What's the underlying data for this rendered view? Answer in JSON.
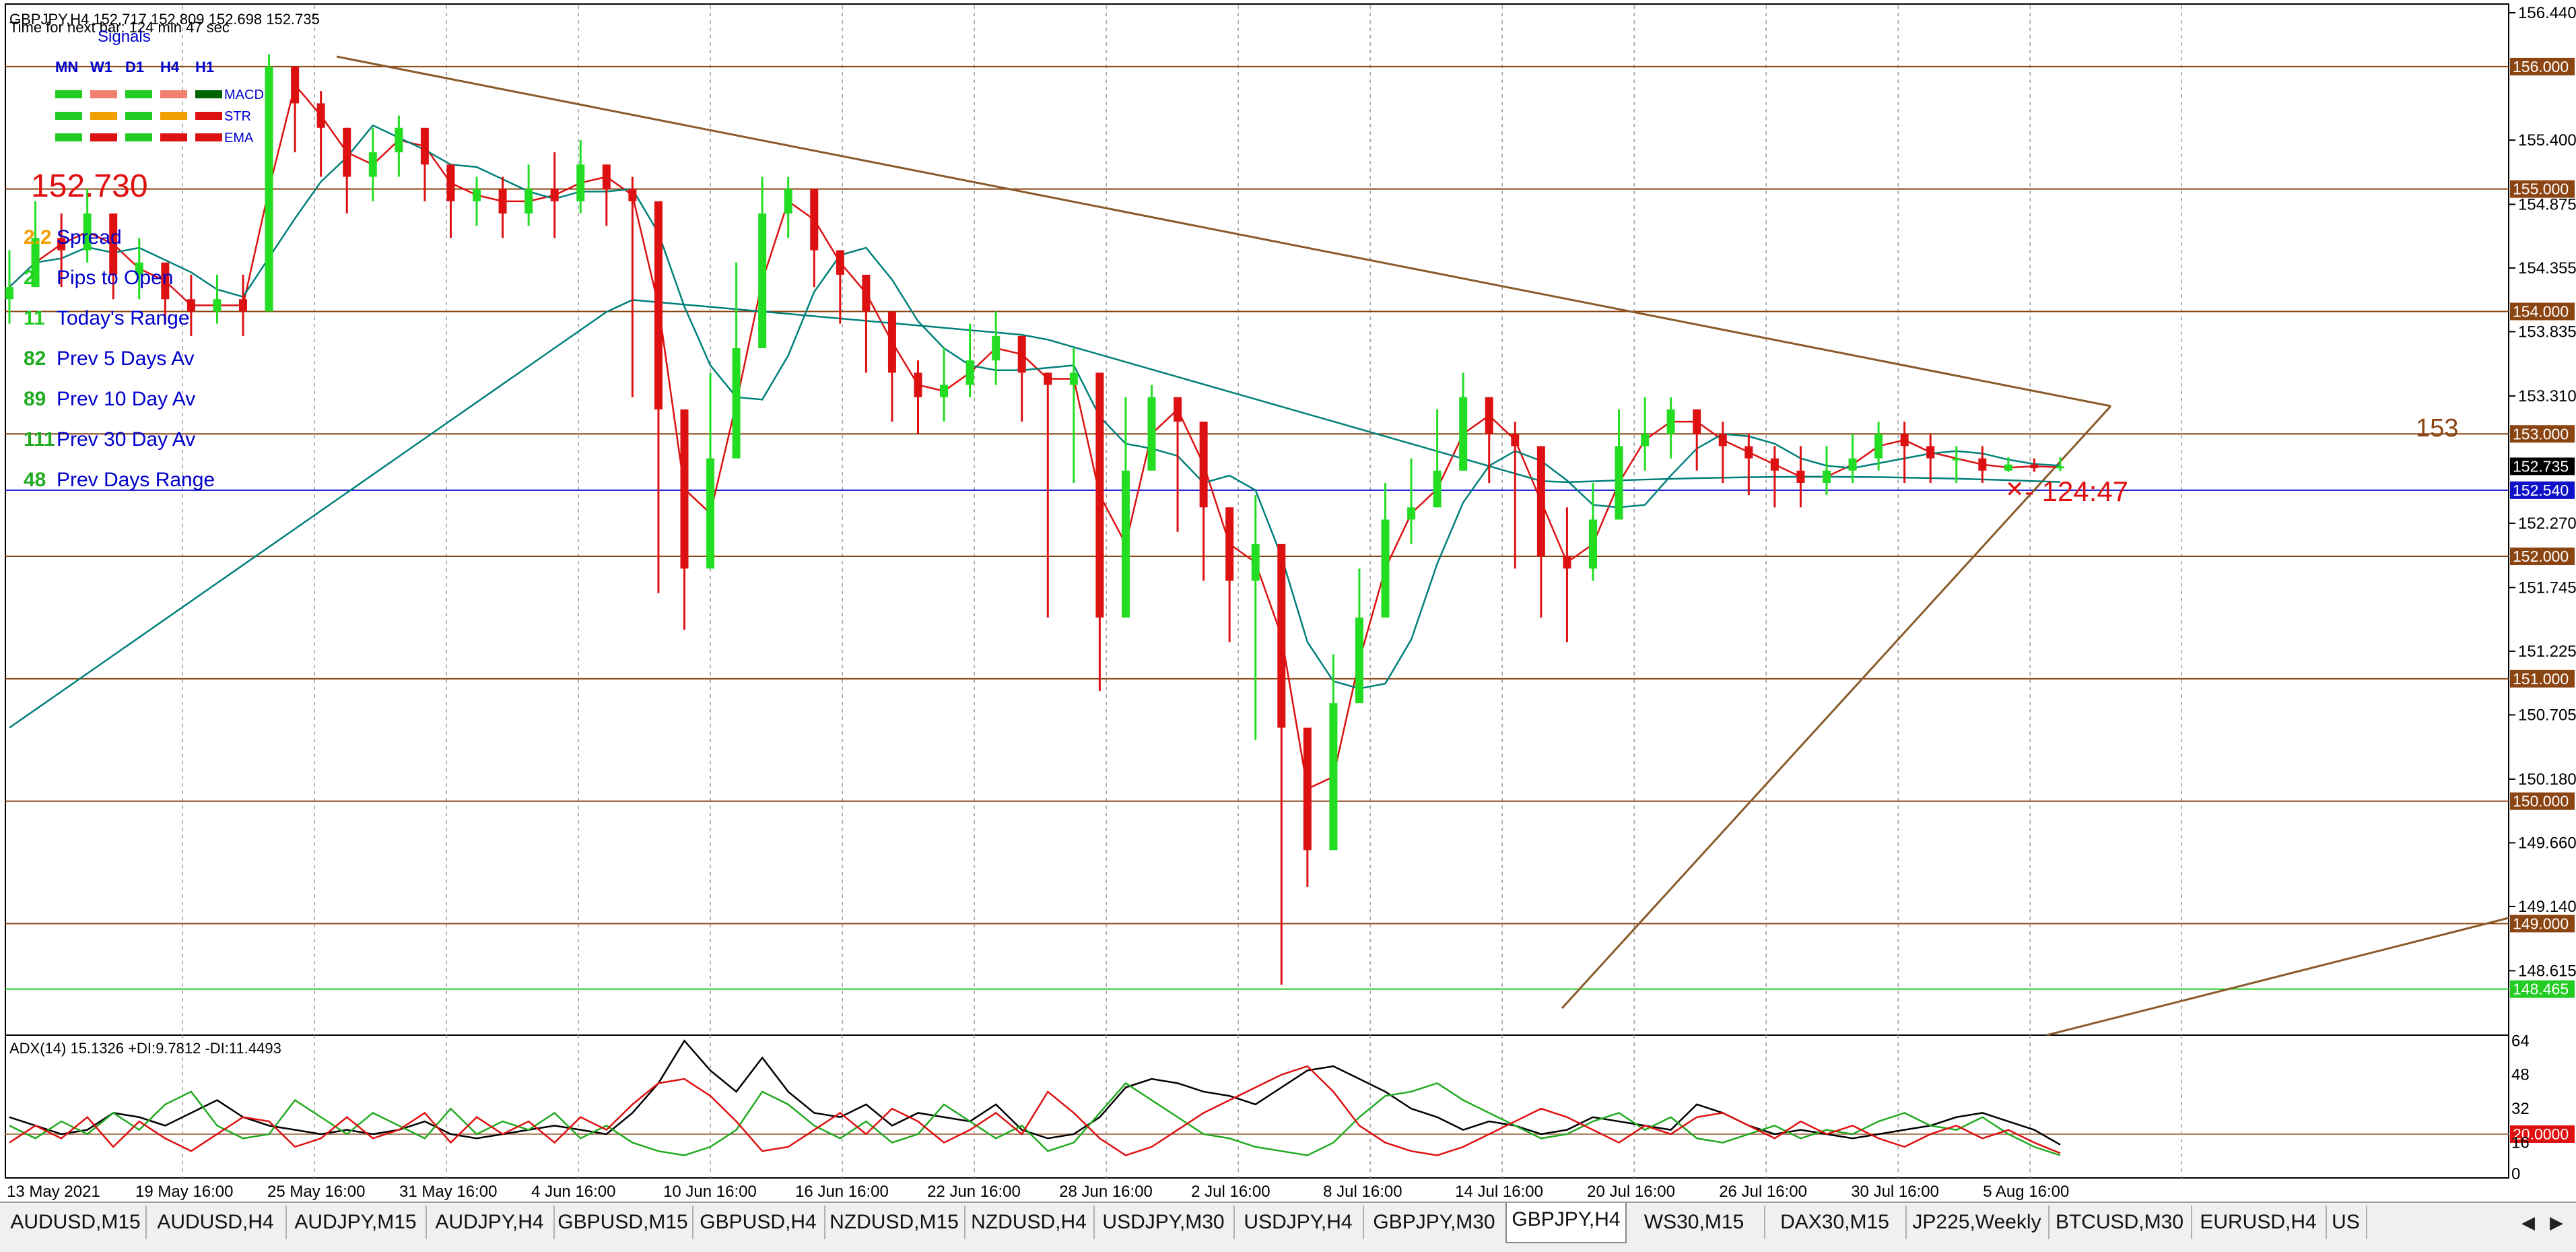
{
  "chart_data": [
    {
      "type": "candlestick",
      "title": "GBPJPY,H4  152.717 152.809 152.698 152.735",
      "subtitle": "Time for next bar: 124 min 47 sec",
      "symbol": "GBPJPY",
      "timeframe": "H4",
      "ohlc_header": {
        "open": 152.717,
        "high": 152.809,
        "low": 152.698,
        "close": 152.735
      },
      "ylim": [
        148.1,
        156.5
      ],
      "x_tick_labels": [
        "13 May 2021",
        "19 May 16:00",
        "25 May 16:00",
        "31 May 16:00",
        "4 Jun 16:00",
        "10 Jun 16:00",
        "16 Jun 16:00",
        "22 Jun 16:00",
        "28 Jun 16:00",
        "2 Jul 16:00",
        "8 Jul 16:00",
        "14 Jul 16:00",
        "20 Jul 16:00",
        "26 Jul 16:00",
        "30 Jul 16:00",
        "5 Aug 16:00"
      ],
      "y_tick_labels": [
        "156.440",
        "155.400",
        "154.875",
        "154.355",
        "153.835",
        "153.310",
        "152.270",
        "151.745",
        "151.225",
        "150.705",
        "150.180",
        "149.660",
        "149.140",
        "148.615"
      ],
      "horizontal_levels": [
        {
          "value": 156.0,
          "label": "156.000",
          "color": "#8b4513"
        },
        {
          "value": 155.0,
          "label": "155.000",
          "color": "#8b4513"
        },
        {
          "value": 154.0,
          "label": "154.000",
          "color": "#8b4513"
        },
        {
          "value": 153.0,
          "label": "153.000",
          "color": "#8b4513"
        },
        {
          "value": 152.0,
          "label": "152.000",
          "color": "#8b4513"
        },
        {
          "value": 151.0,
          "label": "151.000",
          "color": "#8b4513"
        },
        {
          "value": 150.0,
          "label": "150.000",
          "color": "#8b4513"
        },
        {
          "value": 149.0,
          "label": "149.000",
          "color": "#8b4513"
        },
        {
          "value": 152.54,
          "label": "152.540",
          "color": "#1010c8"
        },
        {
          "value": 148.465,
          "label": "148.465",
          "color": "#22cc22"
        }
      ],
      "current_price": {
        "value": 152.735,
        "label": "152.735"
      },
      "price_series": {
        "name": "",
        "x": [
          0,
          4,
          8,
          12,
          16,
          20,
          24,
          28,
          32,
          36,
          40,
          44,
          48,
          52,
          56,
          60,
          64,
          68,
          72,
          76,
          80,
          84,
          88,
          92,
          96,
          100,
          104,
          108,
          112,
          116,
          120,
          124,
          128,
          132,
          136,
          140,
          144,
          148,
          152,
          156,
          160,
          164,
          168,
          172,
          176,
          180,
          184,
          188,
          192,
          196,
          200,
          204,
          208,
          212,
          216,
          220,
          224,
          228,
          232,
          236,
          240,
          244,
          248,
          252,
          256,
          260,
          264,
          268,
          272,
          276,
          280,
          284,
          288,
          292,
          296,
          300,
          304,
          308,
          312,
          316
        ],
        "close": [
          154.2,
          154.6,
          154.5,
          154.8,
          154.3,
          154.4,
          154.1,
          154.0,
          154.1,
          154.0,
          156.0,
          155.7,
          155.5,
          155.1,
          155.3,
          155.5,
          155.2,
          154.9,
          155.0,
          154.8,
          155.0,
          154.9,
          155.2,
          155.0,
          154.9,
          153.2,
          151.9,
          152.8,
          153.7,
          154.8,
          155.0,
          154.5,
          154.3,
          154.0,
          153.5,
          153.3,
          153.4,
          153.6,
          153.8,
          153.5,
          153.4,
          153.5,
          151.5,
          152.7,
          153.3,
          153.1,
          152.4,
          151.8,
          152.1,
          150.6,
          149.6,
          150.8,
          151.5,
          152.3,
          152.4,
          152.7,
          153.3,
          153.0,
          152.9,
          152.0,
          151.9,
          152.3,
          152.9,
          153.0,
          153.2,
          153.0,
          152.9,
          152.8,
          152.7,
          152.6,
          152.7,
          152.8,
          153.0,
          152.9,
          152.8,
          152.8,
          152.7,
          152.75,
          152.72,
          152.735
        ],
        "high": [
          154.5,
          154.9,
          154.8,
          155.0,
          154.6,
          154.6,
          154.3,
          154.3,
          154.3,
          154.3,
          156.1,
          156.0,
          155.8,
          155.5,
          155.5,
          155.6,
          155.4,
          155.1,
          155.1,
          155.1,
          155.2,
          155.3,
          155.4,
          155.2,
          155.1,
          153.8,
          152.9,
          153.5,
          154.4,
          155.1,
          155.1,
          154.8,
          154.5,
          154.2,
          153.8,
          153.6,
          153.7,
          153.9,
          154.0,
          153.8,
          153.5,
          153.7,
          152.4,
          153.3,
          153.4,
          153.3,
          152.8,
          152.4,
          152.5,
          151.4,
          150.3,
          151.2,
          151.9,
          152.6,
          152.8,
          153.2,
          153.5,
          153.3,
          153.1,
          152.5,
          152.4,
          152.6,
          153.2,
          153.3,
          153.3,
          153.2,
          153.1,
          153.0,
          152.9,
          152.9,
          152.9,
          153.0,
          153.1,
          153.1,
          153.0,
          152.9,
          152.9,
          152.81,
          152.8,
          152.809
        ],
        "low": [
          153.9,
          154.2,
          154.2,
          154.4,
          154.1,
          154.1,
          153.9,
          153.8,
          153.9,
          153.8,
          155.4,
          155.3,
          155.1,
          154.8,
          154.9,
          155.1,
          154.9,
          154.6,
          154.7,
          154.6,
          154.7,
          154.6,
          154.8,
          154.7,
          153.3,
          151.7,
          151.4,
          152.0,
          153.0,
          154.2,
          154.6,
          154.2,
          153.9,
          153.5,
          153.1,
          153.0,
          153.1,
          153.3,
          153.4,
          153.1,
          151.5,
          152.6,
          150.9,
          151.6,
          152.8,
          152.2,
          151.8,
          151.3,
          150.5,
          148.5,
          149.3,
          150.1,
          151.0,
          151.9,
          152.1,
          152.4,
          152.7,
          152.6,
          151.9,
          151.5,
          151.3,
          151.8,
          152.4,
          152.7,
          152.8,
          152.7,
          152.6,
          152.5,
          152.4,
          152.4,
          152.5,
          152.6,
          152.7,
          152.6,
          152.6,
          152.6,
          152.6,
          152.69,
          152.69,
          152.698
        ]
      }
    },
    {
      "type": "line",
      "title": "ADX(14) 15.1326 +DI:9.7812 -DI:11.4493",
      "ylim": [
        0,
        66
      ],
      "y_tick_labels": [
        "64",
        "48",
        "32",
        "16",
        "0"
      ],
      "level": {
        "value": 20.0,
        "label": "20.0000"
      },
      "series": [
        {
          "name": "ADX",
          "color": "#000000",
          "values": [
            28,
            24,
            20,
            22,
            30,
            28,
            24,
            30,
            36,
            28,
            24,
            22,
            20,
            22,
            20,
            22,
            26,
            20,
            18,
            20,
            22,
            24,
            22,
            20,
            30,
            44,
            64,
            50,
            40,
            56,
            40,
            30,
            28,
            34,
            24,
            30,
            28,
            26,
            34,
            22,
            18,
            20,
            28,
            42,
            46,
            44,
            40,
            38,
            34,
            42,
            50,
            52,
            46,
            40,
            32,
            28,
            22,
            26,
            24,
            20,
            22,
            28,
            26,
            24,
            22,
            34,
            30,
            24,
            20,
            22,
            20,
            18,
            20,
            22,
            24,
            28,
            30,
            26,
            22,
            15
          ]
        },
        {
          "name": "+DI",
          "color": "#22aa22",
          "values": [
            24,
            18,
            26,
            20,
            30,
            22,
            34,
            40,
            24,
            18,
            20,
            36,
            28,
            20,
            30,
            24,
            18,
            32,
            20,
            26,
            22,
            30,
            18,
            24,
            16,
            12,
            10,
            14,
            22,
            40,
            34,
            24,
            18,
            26,
            16,
            20,
            34,
            26,
            18,
            24,
            12,
            16,
            30,
            44,
            36,
            28,
            20,
            18,
            14,
            12,
            10,
            16,
            28,
            38,
            40,
            44,
            36,
            30,
            24,
            18,
            20,
            26,
            30,
            22,
            28,
            18,
            16,
            20,
            24,
            18,
            22,
            20,
            26,
            30,
            24,
            22,
            28,
            20,
            14,
            10
          ]
        },
        {
          "name": "-DI",
          "color": "#dd1111",
          "values": [
            16,
            24,
            18,
            28,
            14,
            26,
            18,
            12,
            20,
            28,
            26,
            14,
            18,
            28,
            18,
            22,
            30,
            16,
            28,
            20,
            26,
            16,
            28,
            22,
            34,
            44,
            46,
            38,
            26,
            12,
            14,
            22,
            30,
            20,
            32,
            26,
            16,
            22,
            30,
            20,
            40,
            30,
            18,
            10,
            14,
            22,
            30,
            36,
            42,
            48,
            52,
            40,
            24,
            16,
            12,
            10,
            14,
            20,
            26,
            32,
            28,
            22,
            16,
            24,
            20,
            28,
            30,
            24,
            18,
            26,
            20,
            24,
            18,
            14,
            20,
            24,
            18,
            22,
            16,
            11
          ]
        }
      ]
    }
  ],
  "signals_panel": {
    "title": "Signals",
    "columns": [
      "MN",
      "W1",
      "D1",
      "H4",
      "H1"
    ],
    "rows": [
      {
        "label": "MACD",
        "colors": [
          "#22cc22",
          "#f08070",
          "#22cc22",
          "#f08070",
          "#006400"
        ]
      },
      {
        "label": "STR",
        "colors": [
          "#22cc22",
          "#f0a000",
          "#22cc22",
          "#f0a000",
          "#dd1111"
        ]
      },
      {
        "label": "EMA",
        "colors": [
          "#22cc22",
          "#dd1111",
          "#22cc22",
          "#dd1111",
          "#dd1111"
        ]
      }
    ]
  },
  "info_panel": {
    "price": "152.730",
    "rows": [
      {
        "value": "2.2",
        "label": "Spread",
        "value_color": "#f0a000"
      },
      {
        "value": "2",
        "label": "Pips to Open",
        "value_color": "#22cc22"
      },
      {
        "value": "11",
        "label": "Today's Range",
        "value_color": "#22cc22"
      },
      {
        "value": "82",
        "label": "Prev 5 Days Av",
        "value_color": "#22aa22"
      },
      {
        "value": "89",
        "label": "Prev 10 Day Av",
        "value_color": "#22aa22"
      },
      {
        "value": "111",
        "label": "Prev 30 Day Av",
        "value_color": "#22aa22"
      },
      {
        "value": "48",
        "label": "Prev Days Range",
        "value_color": "#22aa22"
      }
    ]
  },
  "annotations": {
    "right_label": "153",
    "timer": "- 124:47"
  },
  "tabs": {
    "items": [
      "AUDUSD,M15",
      "AUDUSD,H4",
      "AUDJPY,M15",
      "AUDJPY,H4",
      "GBPUSD,M15",
      "GBPUSD,H4",
      "NZDUSD,M15",
      "NZDUSD,H4",
      "USDJPY,M30",
      "USDJPY,H4",
      "GBPJPY,M30",
      "GBPJPY,H4",
      "WS30,M15",
      "DAX30,M15",
      "JP225,Weekly",
      "BTCUSD,M30",
      "EURUSD,H4",
      "US"
    ],
    "active": "GBPJPY,H4"
  },
  "colors": {
    "level_line": "#8b4513",
    "trendline": "#8b5a2b",
    "ma_fast": "#dd1111",
    "ma_slow": "#00807a",
    "bull_candle": "#22dd22",
    "bear_candle": "#dd1111"
  }
}
